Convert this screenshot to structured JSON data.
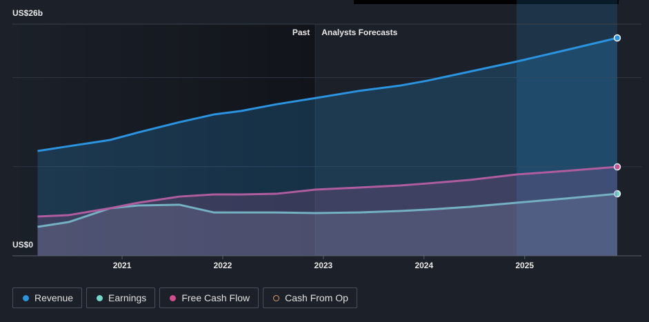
{
  "chart_data": {
    "type": "line",
    "annotations": [
      "Past",
      "Analysts Forecasts"
    ],
    "forecast_start": 2022.92,
    "highlight": [
      2024.92,
      2025.92
    ],
    "x": [
      2020.16,
      2020.47,
      2020.88,
      2021.16,
      2021.57,
      2021.91,
      2022.18,
      2022.53,
      2022.92,
      2023.35,
      2023.76,
      2024.03,
      2024.45,
      2024.92,
      2025.4,
      2025.92
    ],
    "series": [
      {
        "name": "Revenue",
        "color": "#2b94e0",
        "values": [
          11.76,
          12.3,
          13.0,
          13.85,
          15.0,
          15.86,
          16.25,
          17.0,
          17.7,
          18.5,
          19.1,
          19.65,
          20.66,
          21.8,
          23.06,
          24.45
        ]
      },
      {
        "name": "Earnings",
        "color": "#72d8c8",
        "values": [
          3.25,
          3.79,
          5.34,
          5.65,
          5.73,
          4.87,
          4.87,
          4.87,
          4.8,
          4.87,
          5.03,
          5.18,
          5.49,
          5.96,
          6.42,
          6.96
        ]
      },
      {
        "name": "Free Cash Flow",
        "color": "#d64d8e",
        "values": [
          4.41,
          4.57,
          5.34,
          5.96,
          6.65,
          6.89,
          6.89,
          6.96,
          7.43,
          7.66,
          7.89,
          8.12,
          8.51,
          9.13,
          9.52,
          9.98
        ]
      },
      {
        "name": "Cash From Op",
        "color": "#e0a060",
        "values": [
          null,
          null,
          null,
          null,
          null,
          null,
          null,
          null,
          null,
          null,
          null,
          null,
          null,
          null,
          null,
          null
        ]
      }
    ],
    "xlim": [
      2019.91,
      2026.16
    ],
    "xticks": [
      2021,
      2022,
      2023,
      2024,
      2025
    ],
    "ylim": [
      0,
      26
    ],
    "yticks": [
      {
        "value": 0,
        "label": "US$0"
      },
      {
        "value": 26,
        "label": "US$26b"
      }
    ],
    "ygrid": [
      10,
      20
    ],
    "grid": true
  }
}
